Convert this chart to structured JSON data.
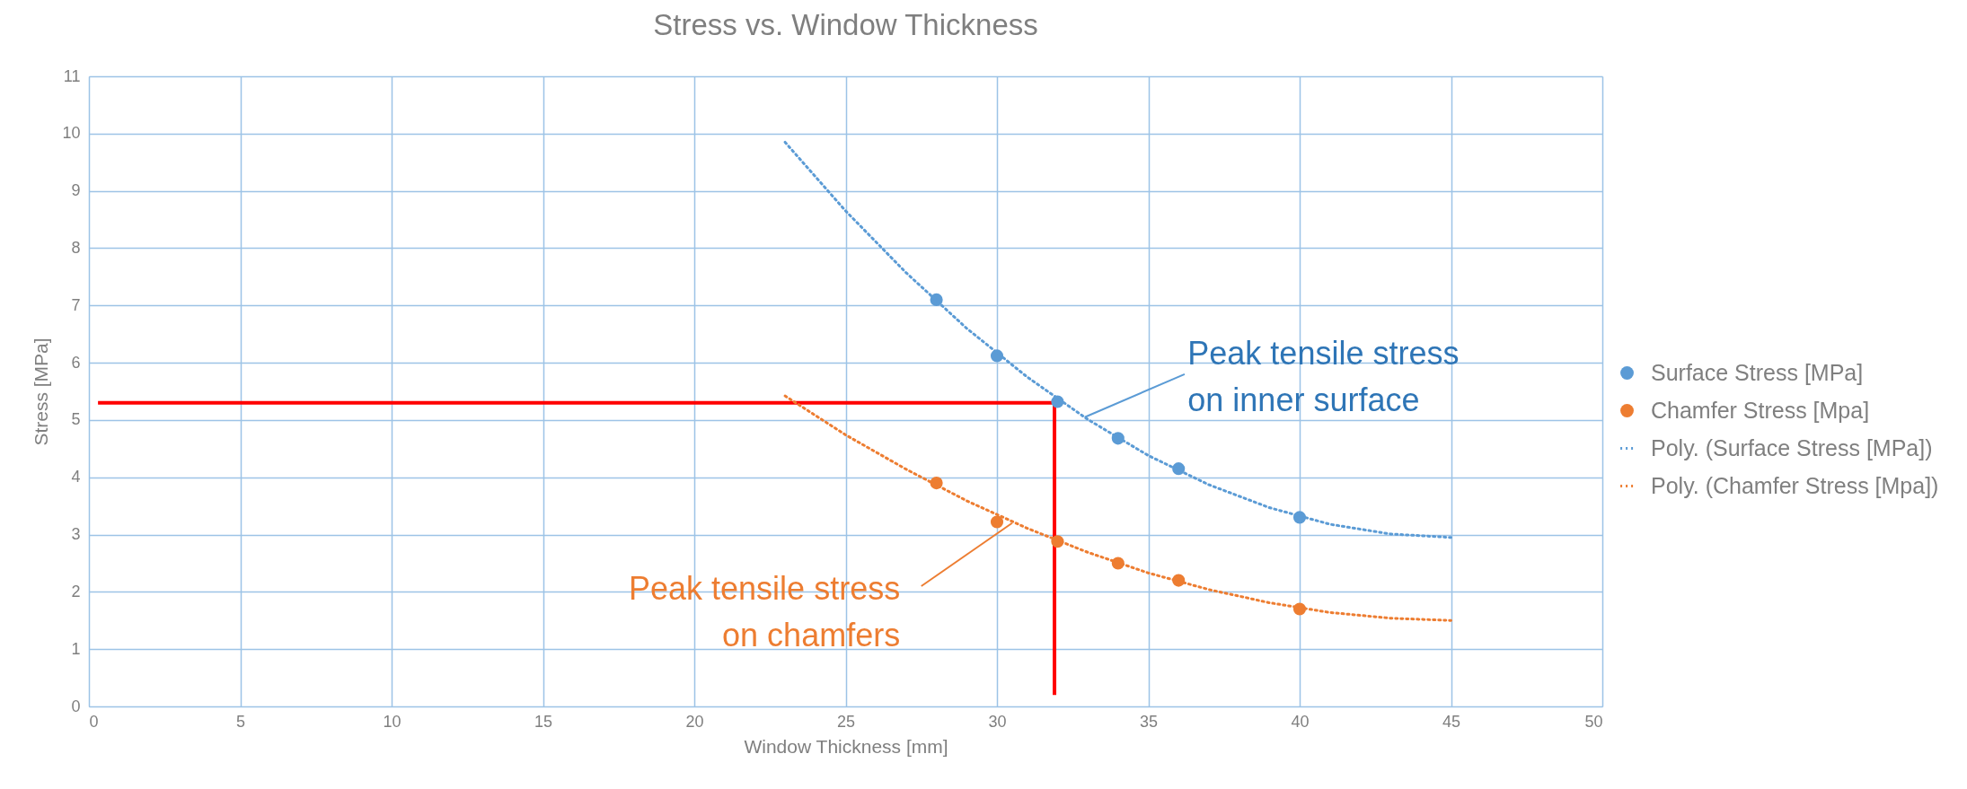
{
  "chart_data": {
    "type": "scatter",
    "title": "Stress vs. Window Thickness",
    "xlabel": "Window Thickness [mm]",
    "ylabel": "Stress [MPa]",
    "xlim": [
      0,
      50
    ],
    "xticks": [
      0,
      5,
      10,
      15,
      20,
      25,
      30,
      35,
      40,
      45,
      50
    ],
    "ylim": [
      0,
      11
    ],
    "yticks": [
      0,
      1,
      2,
      3,
      4,
      5,
      6,
      7,
      8,
      9,
      10,
      11
    ],
    "grid": true,
    "legend": "right",
    "series": [
      {
        "name": "Surface Stress [MPa]",
        "marker": "circle",
        "color": "#5b9bd5",
        "x": [
          28,
          30,
          32,
          34,
          36,
          40
        ],
        "values": [
          7.1,
          6.12,
          5.32,
          4.68,
          4.15,
          3.3
        ]
      },
      {
        "name": "Chamfer Stress [Mpa]",
        "marker": "circle",
        "color": "#ed7d31",
        "x": [
          28,
          30,
          32,
          34,
          36,
          40
        ],
        "values": [
          3.9,
          3.22,
          2.88,
          2.5,
          2.2,
          1.7
        ]
      },
      {
        "name": "Poly. (Surface Stress [MPa])",
        "type": "line",
        "line_style": "dotted",
        "color": "#5b9bd5",
        "x": [
          23,
          25,
          27,
          29,
          31,
          33,
          35,
          37,
          39,
          41,
          43,
          45
        ],
        "values": [
          9.85,
          8.65,
          7.57,
          6.6,
          5.75,
          5.01,
          4.38,
          3.87,
          3.47,
          3.18,
          3.01,
          2.95
        ]
      },
      {
        "name": "Poly. (Chamfer Stress [Mpa])",
        "type": "line",
        "line_style": "dotted",
        "color": "#ed7d31",
        "x": [
          23,
          25,
          27,
          29,
          31,
          33,
          35,
          37,
          39,
          41,
          43,
          45
        ],
        "values": [
          5.42,
          4.74,
          4.14,
          3.59,
          3.11,
          2.69,
          2.33,
          2.04,
          1.81,
          1.64,
          1.54,
          1.5
        ]
      },
      {
        "type": "line",
        "line_style": "solid",
        "color": "#ff0000",
        "x": [
          0.3,
          31.9,
          31.9
        ],
        "values": [
          5.3,
          5.3,
          0.2
        ]
      }
    ],
    "annotations": [
      {
        "text": "Peak tensile stress\non inner surface",
        "x": 32.9,
        "y": 5.05
      },
      {
        "text": "Peak tensile stress\non chamfers",
        "x": 30.5,
        "y": 3.2
      }
    ]
  }
}
